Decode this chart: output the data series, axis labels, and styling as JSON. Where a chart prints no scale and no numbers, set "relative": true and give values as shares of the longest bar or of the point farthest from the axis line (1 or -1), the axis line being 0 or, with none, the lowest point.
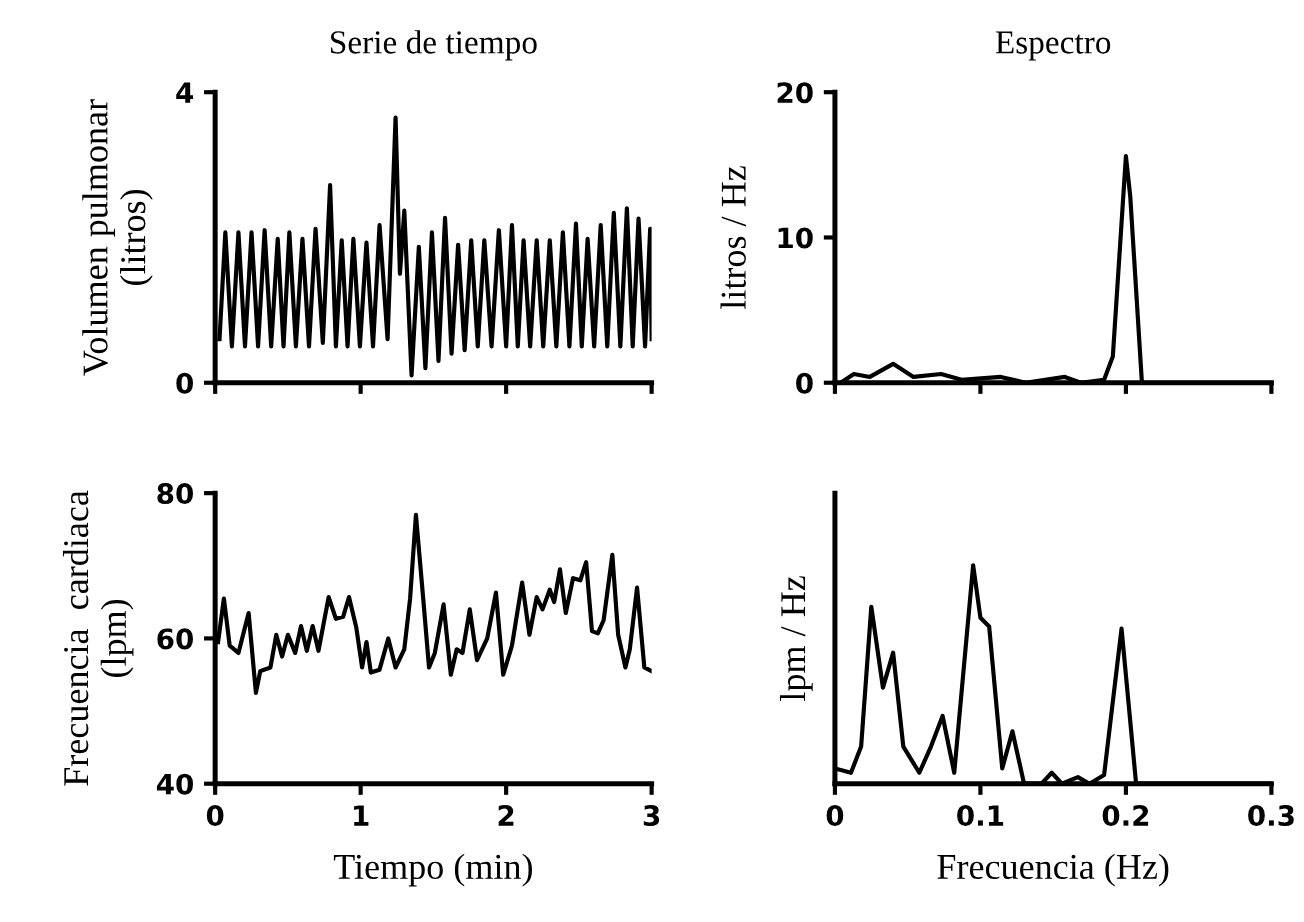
{
  "chart_data": [
    {
      "type": "line",
      "title": "Serie de tiempo",
      "ylabel": "Volumen pulmonar\n(litros)",
      "xlim": [
        0,
        3
      ],
      "xticks": [
        0,
        1,
        2,
        3
      ],
      "ylim": [
        0,
        4
      ],
      "yticks": [
        0,
        4
      ],
      "tick_labels": "y",
      "grid": false,
      "legend": false,
      "color": "#000000",
      "x": [
        0.03,
        0.07,
        0.115,
        0.16,
        0.205,
        0.25,
        0.295,
        0.34,
        0.385,
        0.43,
        0.47,
        0.51,
        0.555,
        0.6,
        0.645,
        0.69,
        0.74,
        0.79,
        0.83,
        0.87,
        0.91,
        0.95,
        0.995,
        1.04,
        1.085,
        1.13,
        1.185,
        1.24,
        1.27,
        1.3,
        1.35,
        1.4,
        1.445,
        1.49,
        1.535,
        1.58,
        1.625,
        1.67,
        1.715,
        1.76,
        1.805,
        1.85,
        1.9,
        1.95,
        2.0,
        2.04,
        2.08,
        2.12,
        2.165,
        2.21,
        2.255,
        2.3,
        2.345,
        2.39,
        2.435,
        2.48,
        2.52,
        2.56,
        2.605,
        2.65,
        2.695,
        2.74,
        2.785,
        2.83,
        2.87,
        2.91,
        2.955,
        2.99,
        3.0
      ],
      "values": [
        0.6,
        2.07,
        0.5,
        2.07,
        0.5,
        2.07,
        0.5,
        2.1,
        0.5,
        1.98,
        0.5,
        2.07,
        0.5,
        1.98,
        0.5,
        2.12,
        0.55,
        2.72,
        0.5,
        1.96,
        0.5,
        1.98,
        0.5,
        1.93,
        0.5,
        2.17,
        0.6,
        3.65,
        1.5,
        2.37,
        0.1,
        1.87,
        0.2,
        2.07,
        0.3,
        2.27,
        0.4,
        1.9,
        0.45,
        1.96,
        0.5,
        1.96,
        0.5,
        2.1,
        0.5,
        2.17,
        0.5,
        1.96,
        0.5,
        1.96,
        0.5,
        1.96,
        0.5,
        2.07,
        0.5,
        2.19,
        0.5,
        1.98,
        0.5,
        2.17,
        0.5,
        2.34,
        0.5,
        2.4,
        0.5,
        2.26,
        0.5,
        2.12,
        0.6
      ]
    },
    {
      "type": "line",
      "title": "Espectro",
      "ylabel": "litros / Hz",
      "xlim": [
        0,
        0.3
      ],
      "xticks": [
        0,
        0.1,
        0.2,
        0.3
      ],
      "ylim": [
        0,
        20
      ],
      "yticks": [
        0,
        10,
        20
      ],
      "tick_labels": "y",
      "grid": false,
      "legend": false,
      "color": "#000000",
      "x": [
        0.004,
        0.013,
        0.024,
        0.04,
        0.054,
        0.073,
        0.087,
        0.114,
        0.131,
        0.158,
        0.169,
        0.185,
        0.191,
        0.2,
        0.203,
        0.211,
        0.229,
        0.3
      ],
      "values": [
        0,
        0.6,
        0.4,
        1.3,
        0.4,
        0.6,
        0.2,
        0.4,
        0,
        0.4,
        0,
        0.2,
        1.8,
        15.6,
        12.8,
        0,
        0,
        0
      ]
    },
    {
      "type": "line",
      "ylabel": "Frecuencia  cardiaca\n(lpm)",
      "xlabel": "Tiempo (min)",
      "xlim": [
        0,
        3
      ],
      "xticks": [
        0,
        1,
        2,
        3
      ],
      "ylim": [
        40,
        80
      ],
      "yticks": [
        40,
        60,
        80
      ],
      "grid": false,
      "legend": false,
      "color": "#000000",
      "x": [
        0.02,
        0.06,
        0.1,
        0.16,
        0.23,
        0.28,
        0.31,
        0.38,
        0.42,
        0.46,
        0.5,
        0.55,
        0.59,
        0.63,
        0.67,
        0.71,
        0.78,
        0.83,
        0.88,
        0.92,
        0.97,
        1.01,
        1.04,
        1.07,
        1.13,
        1.19,
        1.24,
        1.3,
        1.34,
        1.38,
        1.43,
        1.47,
        1.51,
        1.57,
        1.62,
        1.66,
        1.7,
        1.75,
        1.8,
        1.87,
        1.93,
        1.98,
        2.04,
        2.11,
        2.16,
        2.21,
        2.25,
        2.3,
        2.33,
        2.37,
        2.41,
        2.46,
        2.51,
        2.55,
        2.59,
        2.63,
        2.67,
        2.73,
        2.77,
        2.82,
        2.85,
        2.9,
        2.95,
        3.0
      ],
      "values": [
        59.5,
        65.5,
        59,
        58,
        63.5,
        52.5,
        55.5,
        56,
        60.5,
        57.5,
        60.5,
        58,
        61.7,
        58.3,
        61.7,
        58.3,
        65.7,
        62.7,
        63,
        65.7,
        61.5,
        56,
        59.5,
        55.3,
        55.7,
        60,
        56,
        58.5,
        65.5,
        77,
        65.5,
        56,
        58,
        64.7,
        55,
        58.5,
        58,
        64,
        57,
        60,
        66.3,
        55,
        59,
        67.7,
        60.5,
        65.7,
        64,
        66.7,
        65,
        69.5,
        63.5,
        68.3,
        68,
        70.5,
        61,
        60.7,
        62.5,
        71.5,
        60.5,
        56,
        58.5,
        67,
        56,
        55.5
      ]
    },
    {
      "type": "line",
      "ylabel": "lpm / Hz",
      "xlabel": "Frecuencia (Hz)",
      "xlim": [
        0,
        0.3
      ],
      "xticks": [
        0,
        0.1,
        0.2,
        0.3
      ],
      "relative": true,
      "grid": false,
      "legend": false,
      "color": "#000000",
      "x": [
        0.0,
        0.011,
        0.018,
        0.025,
        0.033,
        0.04,
        0.047,
        0.058,
        0.066,
        0.074,
        0.082,
        0.095,
        0.1,
        0.106,
        0.115,
        0.122,
        0.13,
        0.142,
        0.149,
        0.156,
        0.167,
        0.175,
        0.185,
        0.197,
        0.207,
        0.219,
        0.3
      ],
      "values": [
        0.07,
        0.05,
        0.17,
        0.81,
        0.44,
        0.6,
        0.17,
        0.05,
        0.17,
        0.31,
        0.05,
        1,
        0.76,
        0.72,
        0.07,
        0.24,
        0,
        0,
        0.05,
        0,
        0.03,
        0,
        0.04,
        0.71,
        0,
        0,
        0
      ]
    }
  ]
}
